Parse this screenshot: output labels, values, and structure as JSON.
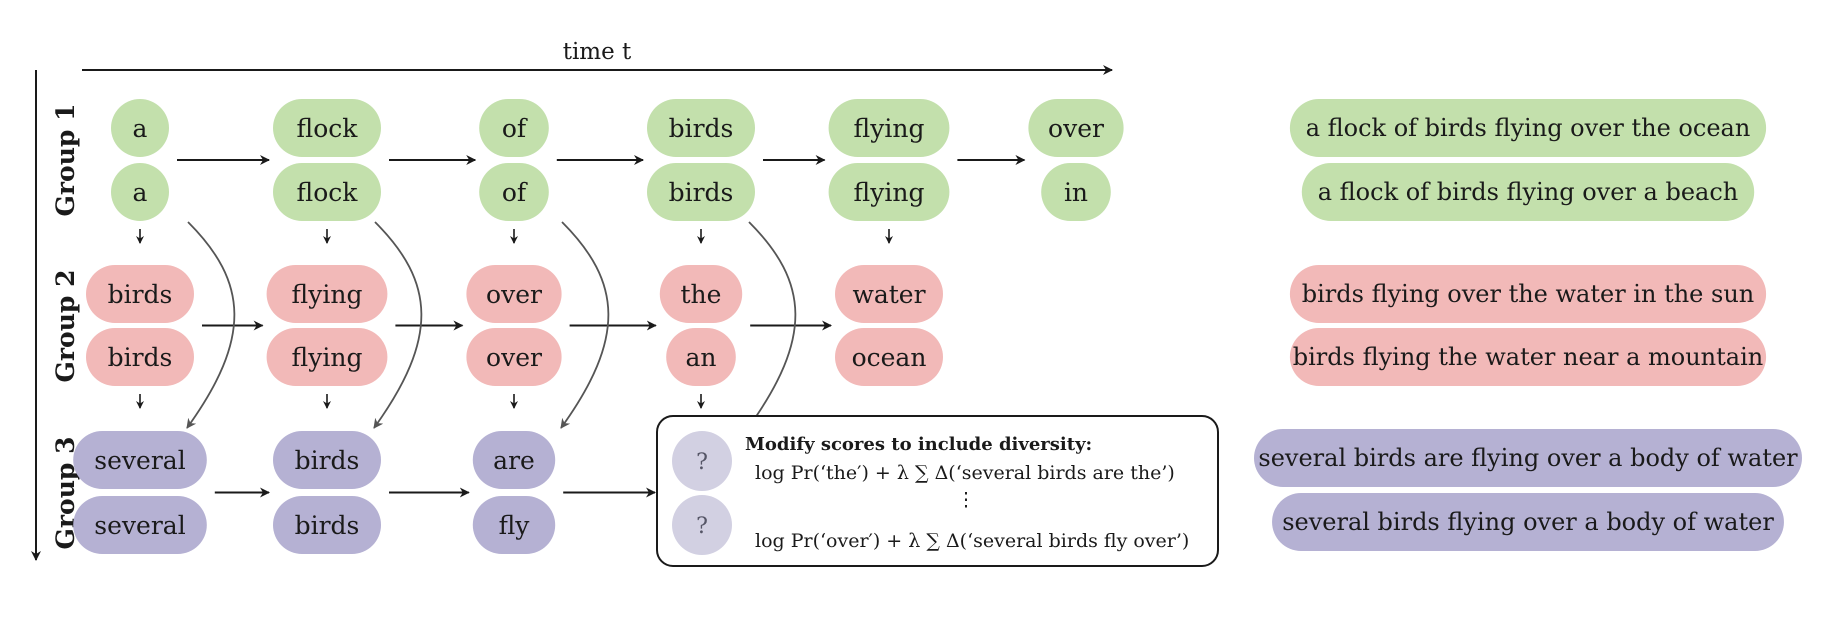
{
  "colors": {
    "group1": "#c3e0ac",
    "group2": "#f2b9b8",
    "group3": "#b5b1d3",
    "placeholder": "#d2d0e2",
    "ink": "#1a1a1a",
    "curve": "#555555"
  },
  "time_axis_label": "time t",
  "groups": [
    {
      "label": "Group 1",
      "color_key": "group1",
      "beams": [
        [
          "a",
          "flock",
          "of",
          "birds",
          "flying",
          "over"
        ],
        [
          "a",
          "flock",
          "of",
          "birds",
          "flying",
          "in"
        ]
      ],
      "outputs": [
        "a flock of birds flying over the ocean",
        "a flock of birds flying over a beach"
      ]
    },
    {
      "label": "Group 2",
      "color_key": "group2",
      "beams": [
        [
          "birds",
          "flying",
          "over",
          "the",
          "water"
        ],
        [
          "birds",
          "flying",
          "over",
          "an",
          "ocean"
        ]
      ],
      "outputs": [
        "birds flying over the water in the sun",
        "birds flying the water near a mountain"
      ]
    },
    {
      "label": "Group 3",
      "color_key": "group3",
      "beams": [
        [
          "several",
          "birds",
          "are"
        ],
        [
          "several",
          "birds",
          "fly"
        ]
      ],
      "outputs": [
        "several birds are flying over a body of water",
        "several birds flying over a body of water"
      ]
    }
  ],
  "diversity_box": {
    "title": "Modify scores to include diversity:",
    "placeholder_symbol": "?",
    "formula_1": "log Pr(‘the′) + λ ∑ Δ(‘several birds are the’)",
    "ellipsis": "⋮",
    "formula_2": "log Pr(‘over′) + λ ∑ Δ(‘several birds fly over’)"
  }
}
